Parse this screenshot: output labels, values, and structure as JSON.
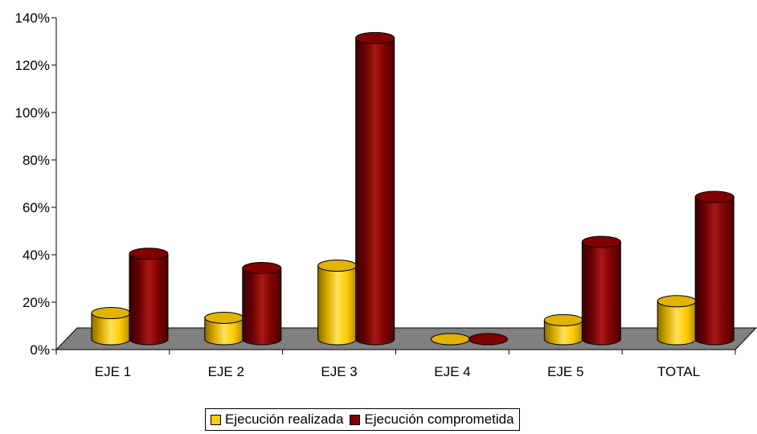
{
  "chart_data": {
    "type": "bar",
    "categories": [
      "EJE 1",
      "EJE 2",
      "EJE 3",
      "EJE 4",
      "EJE 5",
      "TOTAL"
    ],
    "series": [
      {
        "name": "Ejecución realizada",
        "values": [
          11,
          9,
          31,
          0,
          8,
          16
        ],
        "color": "#FFCC00"
      },
      {
        "name": "Ejecución comprometida",
        "values": [
          36,
          30,
          127,
          0,
          41,
          60
        ],
        "color": "#800000"
      }
    ],
    "ylim": [
      0,
      140
    ],
    "yticks": [
      "0%",
      "20%",
      "40%",
      "60%",
      "80%",
      "100%",
      "120%",
      "140%"
    ],
    "title": "",
    "xlabel": "",
    "ylabel": "",
    "legend": "bottom",
    "grid": false,
    "style": "3d-cylinder"
  }
}
